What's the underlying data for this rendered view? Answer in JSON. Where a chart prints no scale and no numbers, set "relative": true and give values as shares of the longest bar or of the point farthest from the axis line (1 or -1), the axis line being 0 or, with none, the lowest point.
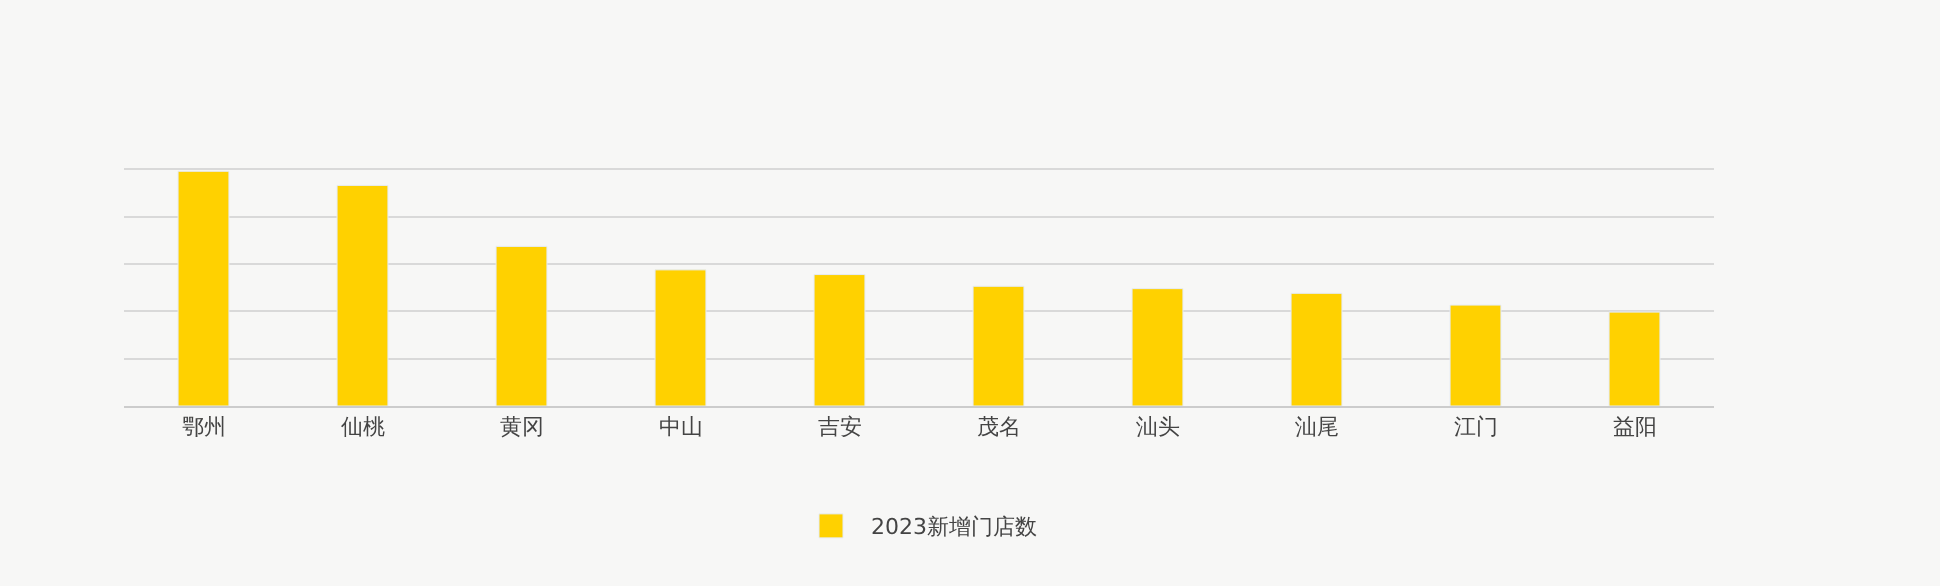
{
  "chart_data": {
    "type": "bar",
    "relative": true,
    "grid": "y",
    "legend": "bottom",
    "categories": [
      "鄂州",
      "仙桃",
      "黄冈",
      "中山",
      "吉安",
      "茂名",
      "汕头",
      "汕尾",
      "江门",
      "益阳"
    ],
    "series": [
      {
        "name": "2023新增门店数",
        "color": "#ffd100",
        "values": [
          1,
          0.94,
          0.68,
          0.58,
          0.56,
          0.51,
          0.5,
          0.48,
          0.43,
          0.4
        ]
      }
    ]
  }
}
